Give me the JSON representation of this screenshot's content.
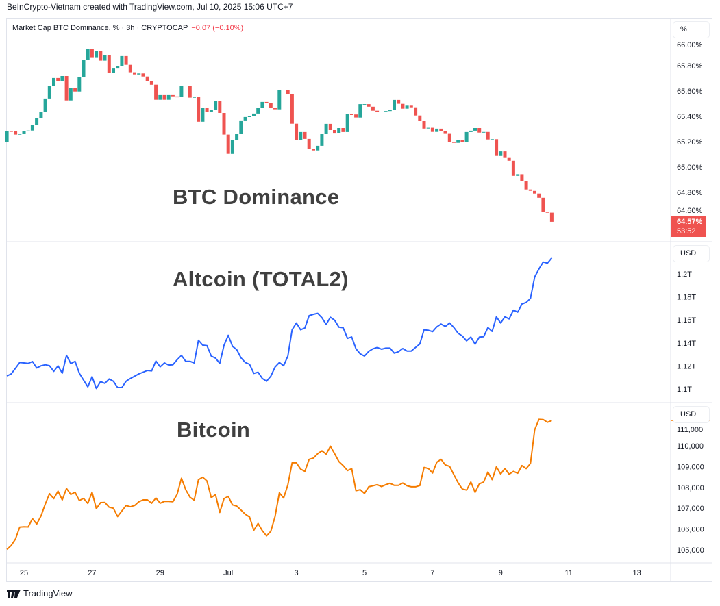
{
  "credit": "BeInCrypto-Vietnam created with TradingView.com, Jul 10, 2025 15:06 UTC+7",
  "legend": {
    "symbol": "Market Cap BTC Dominance, % · 3h · CRYPTOCAP",
    "change": "−0.07 (−0.10%)"
  },
  "footer": {
    "brand": "TradingView",
    "logo_icon": "tradingview-logo-icon"
  },
  "colors": {
    "up": "#26a69a",
    "down": "#ef5350",
    "altcoin": "#2962ff",
    "bitcoin": "#f57c00"
  },
  "chart_data": [
    {
      "type": "candlestick",
      "title": "BTC Dominance",
      "interval": "3h",
      "start": "2025-06-24 12:00",
      "unit_button": "%",
      "first_open": 65.195,
      "close": [
        65.283,
        65.281,
        65.256,
        65.265,
        65.281,
        65.288,
        65.33,
        65.389,
        65.433,
        65.541,
        65.643,
        65.703,
        65.677,
        65.719,
        65.526,
        65.622,
        65.596,
        65.708,
        65.843,
        65.93,
        65.867,
        65.919,
        65.84,
        65.881,
        65.742,
        65.778,
        65.8,
        65.876,
        65.807,
        65.748,
        65.731,
        65.739,
        65.715,
        65.677,
        65.65,
        65.531,
        65.568,
        65.531,
        65.568,
        65.558,
        65.551,
        65.643,
        65.64,
        65.548,
        65.553,
        65.358,
        65.465,
        65.434,
        65.452,
        65.519,
        65.427,
        65.256,
        65.104,
        65.211,
        65.26,
        65.368,
        65.395,
        65.4,
        65.422,
        65.47,
        65.514,
        65.504,
        65.47,
        65.456,
        65.611,
        65.611,
        65.573,
        65.342,
        65.216,
        65.276,
        65.222,
        65.142,
        65.131,
        65.168,
        65.26,
        65.341,
        65.292,
        65.27,
        65.308,
        65.276,
        65.416,
        65.415,
        65.391,
        65.497,
        65.497,
        65.477,
        65.445,
        65.434,
        65.438,
        65.442,
        65.454,
        65.53,
        65.499,
        65.461,
        65.485,
        65.472,
        65.407,
        65.364,
        65.304,
        65.31,
        65.277,
        65.303,
        65.283,
        65.267,
        65.196,
        65.191,
        65.211,
        65.196,
        65.276,
        65.287,
        65.308,
        65.272,
        65.277,
        65.218,
        65.22,
        65.088,
        65.124,
        65.072,
        65.05,
        64.931,
        64.944,
        64.888,
        64.823,
        64.812,
        64.791,
        64.758,
        64.645,
        64.64,
        64.568
      ],
      "yticks": [
        {
          "value": 66.0,
          "label": "66.00%"
        },
        {
          "value": 65.8,
          "label": "65.80%"
        },
        {
          "value": 65.6,
          "label": "65.60%"
        },
        {
          "value": 65.4,
          "label": "65.40%"
        },
        {
          "value": 65.2,
          "label": "65.20%"
        },
        {
          "value": 65.0,
          "label": "65.00%"
        },
        {
          "value": 64.8,
          "label": "64.80%"
        },
        {
          "value": 64.6,
          "label": "64.60%"
        }
      ],
      "last_price": {
        "label": "64.57%",
        "countdown": "53:52"
      }
    },
    {
      "type": "line",
      "title": "Altcoin (TOTAL2)",
      "interval": "3h",
      "start": "2025-06-24 12:00",
      "unit_button": "USD",
      "value_unit": "T",
      "values": [
        1.1113,
        1.1131,
        1.118,
        1.123,
        1.1226,
        1.1222,
        1.1238,
        1.1183,
        1.1201,
        1.121,
        1.1202,
        1.1153,
        1.1201,
        1.1137,
        1.1292,
        1.122,
        1.124,
        1.1137,
        1.1077,
        1.1018,
        1.1107,
        1.1004,
        1.1065,
        1.1048,
        1.1087,
        1.1067,
        1.1012,
        1.1012,
        1.1067,
        1.1091,
        1.1111,
        1.1131,
        1.1146,
        1.1161,
        1.1157,
        1.1242,
        1.1192,
        1.1226,
        1.1208,
        1.121,
        1.1254,
        1.1292,
        1.124,
        1.124,
        1.1226,
        1.1423,
        1.1381,
        1.1377,
        1.1286,
        1.1268,
        1.1222,
        1.1379,
        1.1466,
        1.1371,
        1.1341,
        1.127,
        1.123,
        1.1214,
        1.1135,
        1.1145,
        1.1091,
        1.1067,
        1.1111,
        1.119,
        1.123,
        1.1202,
        1.1286,
        1.1514,
        1.1573,
        1.1514,
        1.153,
        1.1637,
        1.1649,
        1.1657,
        1.1619,
        1.1561,
        1.1623,
        1.1597,
        1.1537,
        1.1532,
        1.144,
        1.1451,
        1.1349,
        1.1305,
        1.1286,
        1.1326,
        1.1349,
        1.1361,
        1.1345,
        1.1355,
        1.1355,
        1.1311,
        1.1323,
        1.1351,
        1.1329,
        1.1329,
        1.1361,
        1.1391,
        1.1514,
        1.151,
        1.1498,
        1.154,
        1.1564,
        1.1543,
        1.1573,
        1.1534,
        1.1484,
        1.146,
        1.1418,
        1.1451,
        1.1389,
        1.1451,
        1.1454,
        1.1534,
        1.15,
        1.1627,
        1.1573,
        1.1627,
        1.1609,
        1.1685,
        1.1668,
        1.1738,
        1.1752,
        1.1787,
        1.1974,
        1.2043,
        1.2103,
        1.2093,
        1.2139
      ],
      "yticks": [
        {
          "value": 1.2,
          "label": "1.2T"
        },
        {
          "value": 1.18,
          "label": "1.18T"
        },
        {
          "value": 1.16,
          "label": "1.16T"
        },
        {
          "value": 1.14,
          "label": "1.14T"
        },
        {
          "value": 1.12,
          "label": "1.12T"
        },
        {
          "value": 1.1,
          "label": "1.1T"
        }
      ]
    },
    {
      "type": "line",
      "title": "Bitcoin",
      "interval": "3h",
      "start": "2025-06-24 12:00",
      "unit_button": "USD",
      "values": [
        105020,
        105210,
        105520,
        106090,
        106110,
        106100,
        106500,
        106240,
        106630,
        107200,
        107700,
        107460,
        107820,
        107400,
        107950,
        107660,
        107770,
        107370,
        107470,
        107230,
        107770,
        106980,
        107270,
        107280,
        107050,
        107000,
        106600,
        106870,
        107130,
        107070,
        107130,
        107310,
        107400,
        107400,
        107240,
        107490,
        107240,
        107330,
        107330,
        107310,
        107670,
        108440,
        107890,
        107530,
        107380,
        108370,
        108490,
        108310,
        107510,
        107650,
        106800,
        107460,
        107570,
        107160,
        107100,
        106910,
        106710,
        106580,
        105940,
        106270,
        105920,
        105670,
        105890,
        106600,
        107740,
        107490,
        108120,
        109180,
        109180,
        108880,
        108770,
        109350,
        109410,
        109620,
        109760,
        109600,
        109980,
        109620,
        109240,
        109050,
        108810,
        108900,
        107840,
        107890,
        107710,
        108030,
        108080,
        108130,
        108040,
        108130,
        108200,
        108100,
        108100,
        108210,
        108080,
        108030,
        108030,
        108090,
        108960,
        108910,
        108690,
        109210,
        109350,
        109080,
        109010,
        108610,
        108220,
        107920,
        107870,
        108260,
        107760,
        108170,
        108260,
        108740,
        108370,
        108990,
        108640,
        108910,
        108630,
        108770,
        108680,
        109050,
        108900,
        109150,
        110770,
        111270,
        111260,
        111130,
        111210
      ],
      "yticks": [
        {
          "value": 111000,
          "label": "111,000"
        },
        {
          "value": 110000,
          "label": "110,000"
        },
        {
          "value": 109000,
          "label": "109,000"
        },
        {
          "value": 108000,
          "label": "108,000"
        },
        {
          "value": 107000,
          "label": "107,000"
        },
        {
          "value": 106000,
          "label": "106,000"
        },
        {
          "value": 105000,
          "label": "105,000"
        }
      ]
    }
  ],
  "xaxis": {
    "ticks": [
      {
        "date": "2025-06-25",
        "label": "25"
      },
      {
        "date": "2025-06-27",
        "label": "27"
      },
      {
        "date": "2025-06-29",
        "label": "29"
      },
      {
        "date": "2025-07-01",
        "label": "Jul"
      },
      {
        "date": "2025-07-03",
        "label": "3"
      },
      {
        "date": "2025-07-05",
        "label": "5"
      },
      {
        "date": "2025-07-07",
        "label": "7"
      },
      {
        "date": "2025-07-09",
        "label": "9"
      },
      {
        "date": "2025-07-11",
        "label": "11"
      },
      {
        "date": "2025-07-13",
        "label": "13"
      }
    ]
  }
}
